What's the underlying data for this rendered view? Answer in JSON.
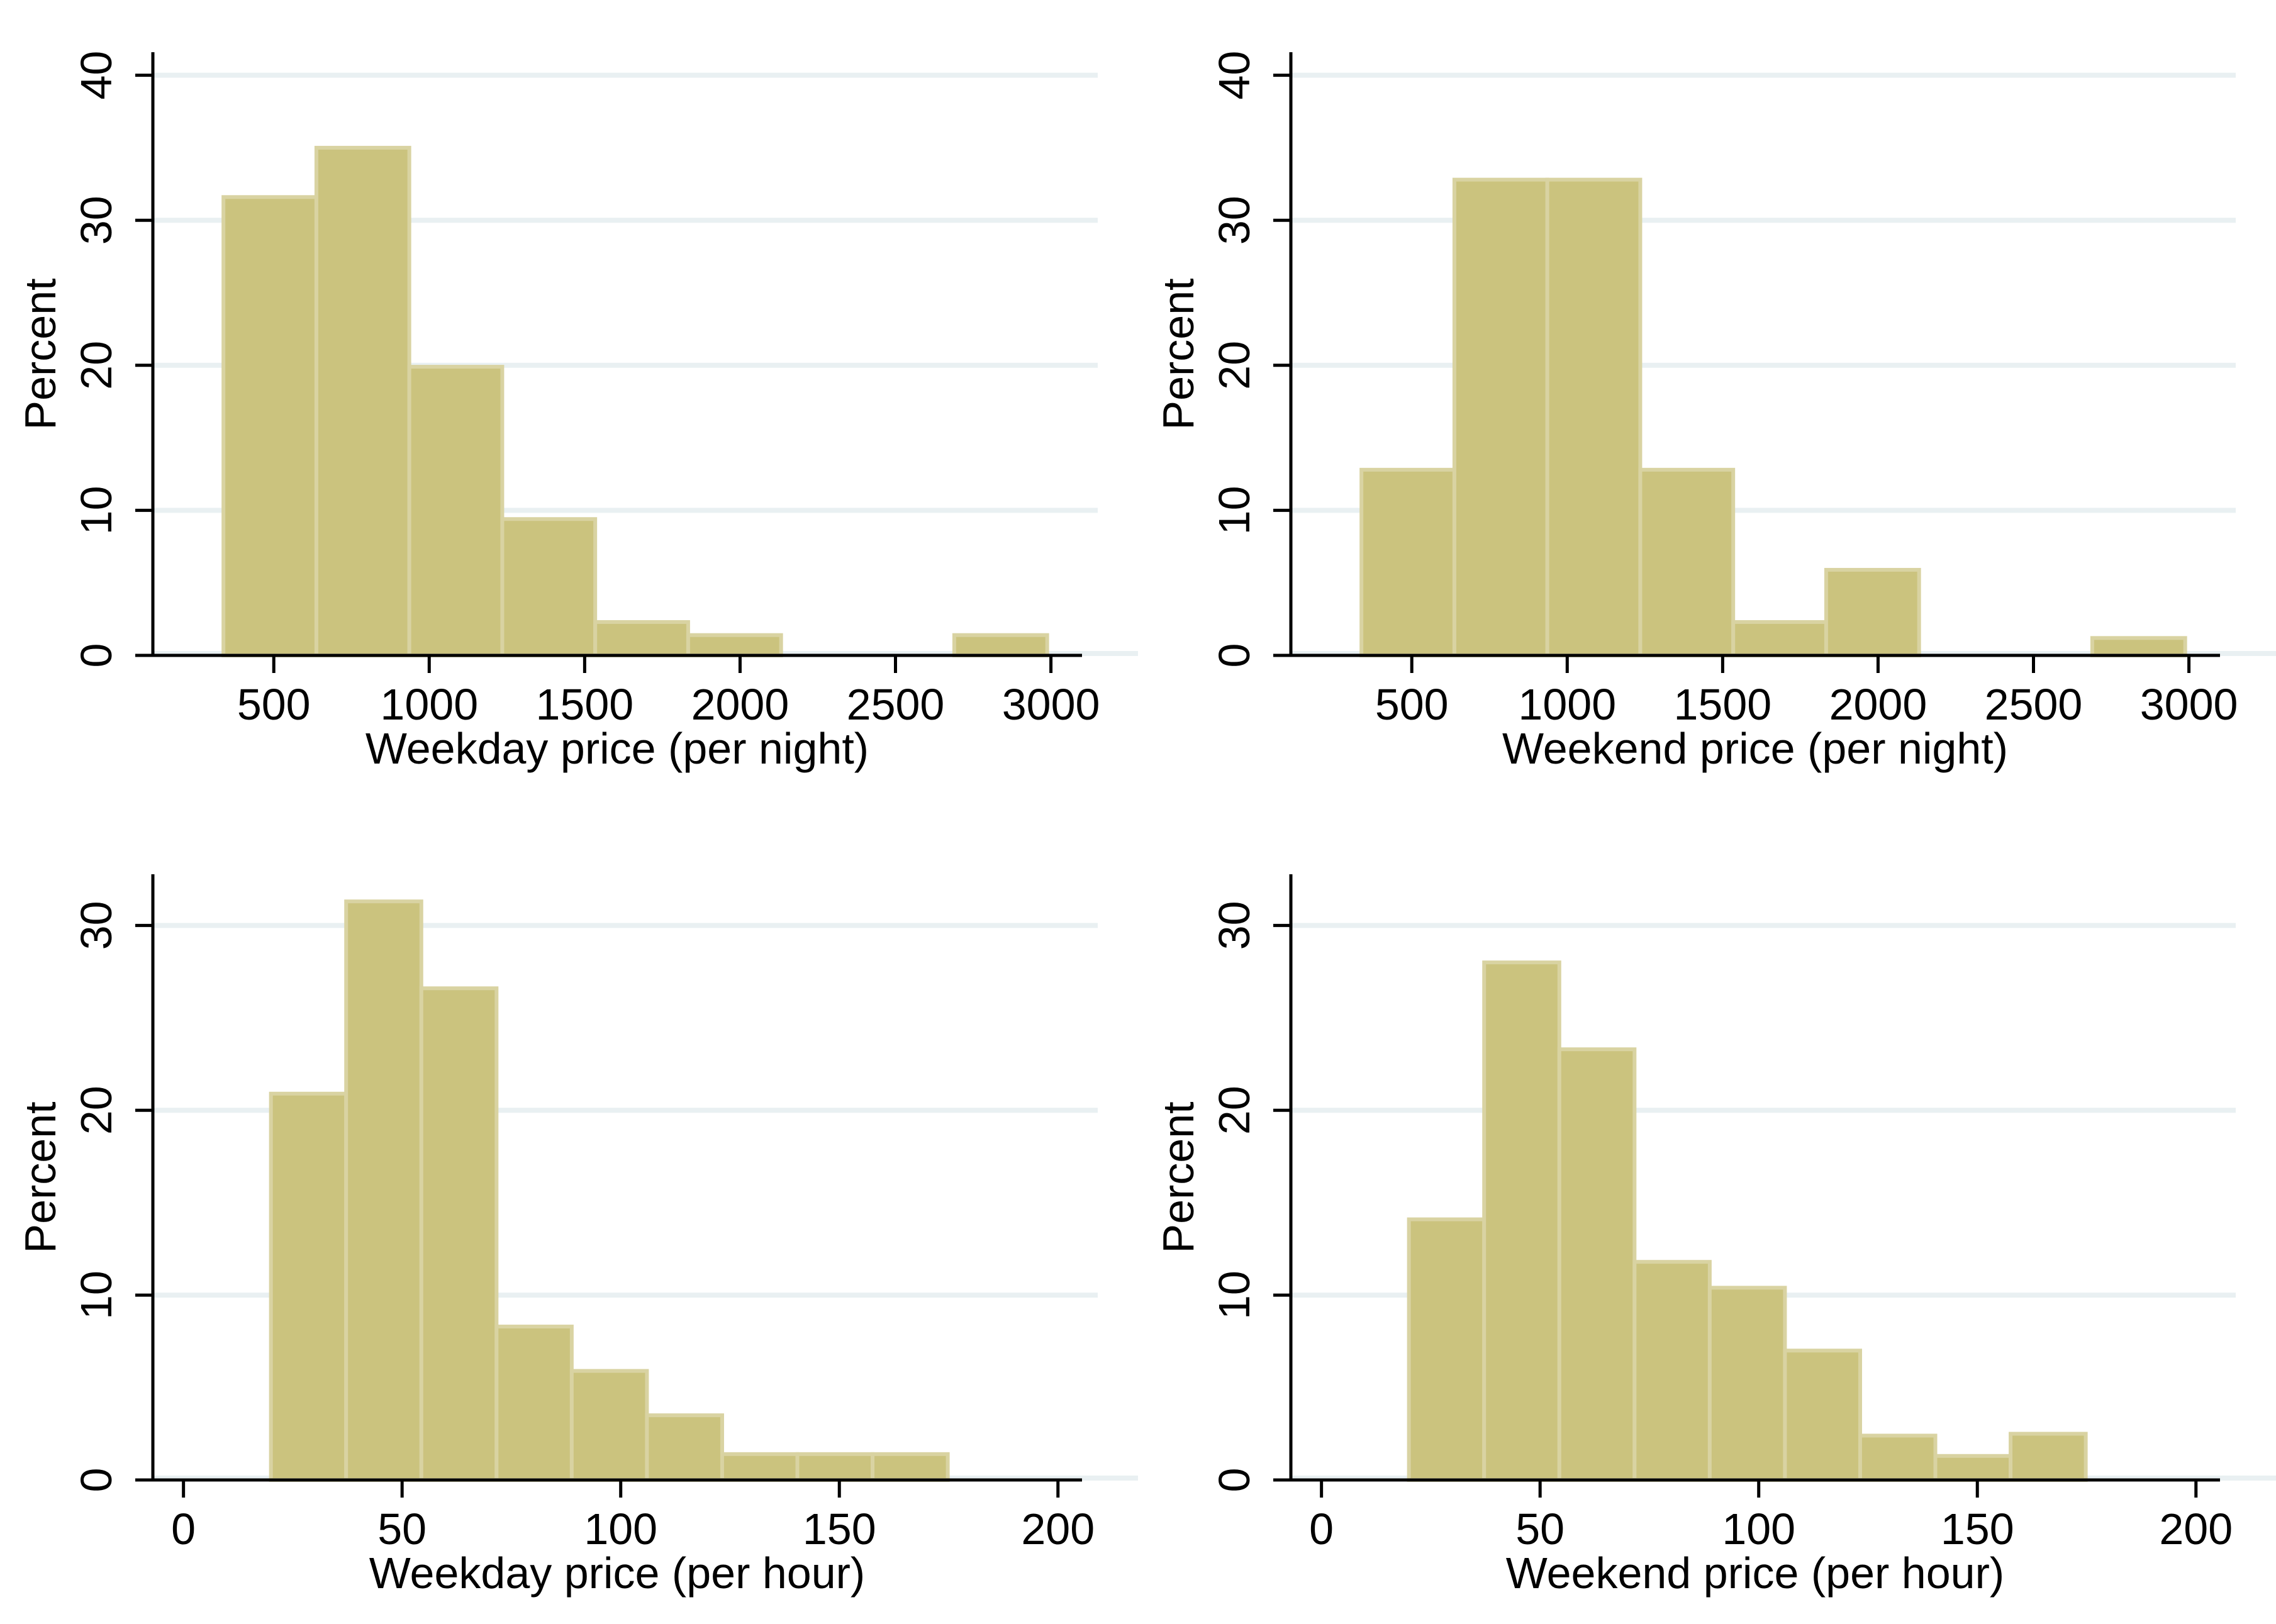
{
  "figure": {
    "background": "#ffffff",
    "description": "2x2 grid of Stata-style histograms of rental prices"
  },
  "colors": {
    "bar_fill": "#cbc37e",
    "bar_stroke": "#d9d3a2",
    "gridline": "#e9f0f2",
    "axis": "#000000",
    "text": "#000000",
    "background": "#ffffff"
  },
  "chart_data": [
    {
      "type": "histogram",
      "title": "",
      "xlabel": "Weekday price (per night)",
      "ylabel": "Percent",
      "x_ticks": [
        500,
        1000,
        1500,
        2000,
        2500,
        3000
      ],
      "y_ticks": [
        0,
        10,
        20,
        30,
        40
      ],
      "xlim": [
        111,
        3100
      ],
      "ylim": [
        0,
        41.5
      ],
      "grid": true,
      "legend": "none",
      "bars": [
        {
          "from": 338,
          "to": 637,
          "percent": 31.6
        },
        {
          "from": 637,
          "to": 936,
          "percent": 35.0
        },
        {
          "from": 936,
          "to": 1235,
          "percent": 19.9
        },
        {
          "from": 1235,
          "to": 1534,
          "percent": 9.4
        },
        {
          "from": 1534,
          "to": 1833,
          "percent": 2.3
        },
        {
          "from": 1833,
          "to": 2132,
          "percent": 1.4
        },
        {
          "from": 2689,
          "to": 2988,
          "percent": 1.4
        }
      ]
    },
    {
      "type": "histogram",
      "title": "",
      "xlabel": "Weekend price (per night)",
      "ylabel": "Percent",
      "x_ticks": [
        500,
        1000,
        1500,
        2000,
        2500,
        3000
      ],
      "y_ticks": [
        0,
        10,
        20,
        30,
        40
      ],
      "xlim": [
        111,
        3100
      ],
      "ylim": [
        0,
        41.5
      ],
      "grid": true,
      "legend": "none",
      "bars": [
        {
          "from": 338,
          "to": 637,
          "percent": 12.8
        },
        {
          "from": 637,
          "to": 936,
          "percent": 32.8
        },
        {
          "from": 936,
          "to": 1235,
          "percent": 32.8
        },
        {
          "from": 1235,
          "to": 1534,
          "percent": 12.8
        },
        {
          "from": 1534,
          "to": 1833,
          "percent": 2.3
        },
        {
          "from": 1833,
          "to": 2132,
          "percent": 5.9
        },
        {
          "from": 2689,
          "to": 2988,
          "percent": 1.2
        }
      ]
    },
    {
      "type": "histogram",
      "title": "",
      "xlabel": "Weekday price (per hour)",
      "ylabel": "Percent",
      "x_ticks": [
        0,
        50,
        100,
        150,
        200
      ],
      "y_ticks": [
        0,
        10,
        20,
        30
      ],
      "xlim": [
        -7,
        205.5
      ],
      "ylim": [
        0,
        32.7
      ],
      "grid": true,
      "legend": "none",
      "bars": [
        {
          "from": 20,
          "to": 37.2,
          "percent": 20.9
        },
        {
          "from": 37.2,
          "to": 54.4,
          "percent": 31.3
        },
        {
          "from": 54.4,
          "to": 71.6,
          "percent": 26.6
        },
        {
          "from": 71.6,
          "to": 88.8,
          "percent": 8.3
        },
        {
          "from": 88.8,
          "to": 106.0,
          "percent": 5.9
        },
        {
          "from": 106.0,
          "to": 123.2,
          "percent": 3.5
        },
        {
          "from": 123.2,
          "to": 140.4,
          "percent": 1.4
        },
        {
          "from": 140.4,
          "to": 157.6,
          "percent": 1.4
        },
        {
          "from": 157.6,
          "to": 174.8,
          "percent": 1.4
        }
      ]
    },
    {
      "type": "histogram",
      "title": "",
      "xlabel": "Weekend price (per hour)",
      "ylabel": "Percent",
      "x_ticks": [
        0,
        50,
        100,
        150,
        200
      ],
      "y_ticks": [
        0,
        10,
        20,
        30
      ],
      "xlim": [
        -7,
        205.5
      ],
      "ylim": [
        0,
        32.7
      ],
      "grid": true,
      "legend": "none",
      "bars": [
        {
          "from": 20,
          "to": 37.2,
          "percent": 14.1
        },
        {
          "from": 37.2,
          "to": 54.4,
          "percent": 28.0
        },
        {
          "from": 54.4,
          "to": 71.6,
          "percent": 23.3
        },
        {
          "from": 71.6,
          "to": 88.8,
          "percent": 11.8
        },
        {
          "from": 88.8,
          "to": 106.0,
          "percent": 10.4
        },
        {
          "from": 106.0,
          "to": 123.2,
          "percent": 7.0
        },
        {
          "from": 123.2,
          "to": 140.4,
          "percent": 2.4
        },
        {
          "from": 140.4,
          "to": 157.6,
          "percent": 1.3
        },
        {
          "from": 157.6,
          "to": 174.8,
          "percent": 2.5
        }
      ]
    }
  ]
}
